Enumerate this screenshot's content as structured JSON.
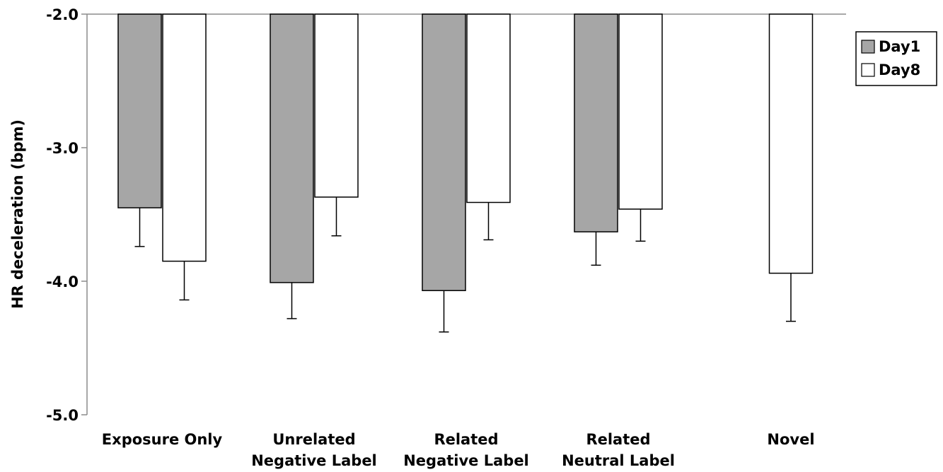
{
  "chart_data": {
    "type": "bar",
    "title": "",
    "xlabel": "",
    "ylabel": "HR deceleration (bpm)",
    "ylim": [
      -5.0,
      -2.0
    ],
    "y_ticks": [
      "-2.0",
      "-3.0",
      "-4.0",
      "-5.0"
    ],
    "bar_baseline": -2.0,
    "categories": [
      [
        "Exposure Only"
      ],
      [
        "Unrelated",
        "Negative Label"
      ],
      [
        "Related",
        "Negative Label"
      ],
      [
        "Related",
        "Neutral Label"
      ],
      [
        "Novel"
      ]
    ],
    "series": [
      {
        "name": "Day1",
        "color": "#a6a6a6",
        "values": [
          -3.45,
          -4.01,
          -4.07,
          -3.63,
          null
        ],
        "error": [
          0.29,
          0.27,
          0.31,
          0.25,
          null
        ]
      },
      {
        "name": "Day8",
        "color": "#ffffff",
        "values": [
          -3.85,
          -3.37,
          -3.41,
          -3.46,
          -3.94
        ],
        "error": [
          0.29,
          0.29,
          0.28,
          0.24,
          0.36
        ]
      }
    ],
    "legend_position": "top-right",
    "grid": false
  }
}
